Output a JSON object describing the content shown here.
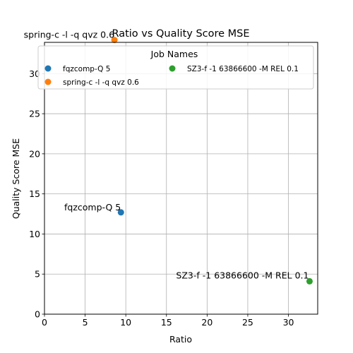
{
  "chart_data": {
    "type": "scatter",
    "title": "Ratio vs Quality Score MSE",
    "xlabel": "Ratio",
    "ylabel": "Quality Score MSE",
    "xlim": [
      0,
      33.6
    ],
    "ylim": [
      0,
      33.9
    ],
    "x_ticks": [
      0,
      5,
      10,
      15,
      20,
      25,
      30
    ],
    "y_ticks": [
      0,
      5,
      10,
      15,
      20,
      25,
      30
    ],
    "grid": true,
    "legend": {
      "title": "Job Names",
      "placement": "top",
      "columns": 2
    },
    "series": [
      {
        "name": "fqzcomp-Q 5",
        "color": "#1f77b4",
        "x": 9.4,
        "y": 12.7,
        "label": "fqzcomp-Q 5"
      },
      {
        "name": "spring-c -l -q qvz 0.6",
        "color": "#ff7f0e",
        "x": 8.6,
        "y": 34.2,
        "label": "spring-c -l -q qvz 0.6"
      },
      {
        "name": "SZ3-f -1 63866600 -M REL 0.1",
        "color": "#2ca02c",
        "x": 32.6,
        "y": 4.1,
        "label": "SZ3-f -1 63866600 -M REL 0.1"
      }
    ]
  }
}
